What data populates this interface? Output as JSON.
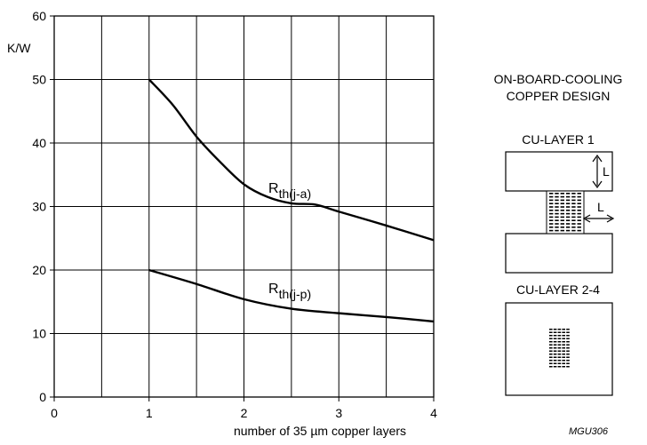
{
  "chart_data": {
    "type": "line",
    "xlabel": "number of 35 µm copper layers",
    "ylabel": "K/W",
    "xlim": [
      0,
      4
    ],
    "ylim": [
      0,
      60
    ],
    "xticks": [
      "0",
      "1",
      "2",
      "3",
      "4"
    ],
    "yticks": [
      "0",
      "10",
      "20",
      "30",
      "40",
      "50",
      "60"
    ],
    "grid": true,
    "series": [
      {
        "name": "Rth(j-a)",
        "label_main": "R",
        "label_sub": "th(j-a)",
        "x": [
          1.0,
          1.25,
          1.5,
          1.75,
          2.0,
          2.25,
          2.5,
          2.75,
          3.0,
          3.5,
          4.0
        ],
        "y": [
          50,
          46,
          41,
          37,
          33.5,
          31.5,
          30.5,
          30.3,
          29.2,
          27,
          24.7
        ]
      },
      {
        "name": "Rth(j-p)",
        "label_main": "R",
        "label_sub": "th(j-p)",
        "x": [
          1.0,
          1.5,
          2.0,
          2.5,
          3.0,
          3.5,
          4.0
        ],
        "y": [
          20,
          17.8,
          15.4,
          13.9,
          13.2,
          12.6,
          11.9
        ]
      }
    ]
  },
  "side_panel": {
    "title_line1": "ON-BOARD-COOLING",
    "title_line2": "COPPER DESIGN",
    "layer1_label": "CU-LAYER 1",
    "layer24_label": "CU-LAYER 2-4",
    "dim_label_vertical": "L",
    "dim_label_horizontal": "L"
  },
  "figure_code": "MGU306"
}
